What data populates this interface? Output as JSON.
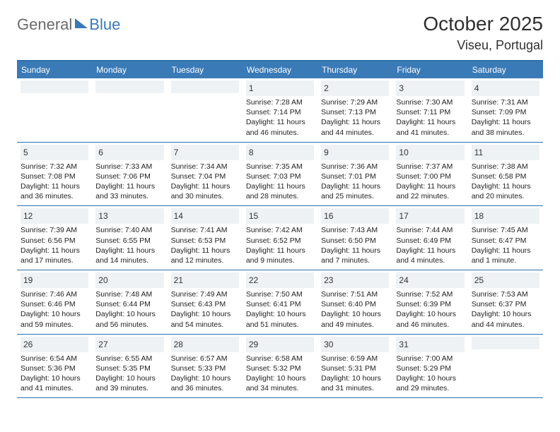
{
  "logo": {
    "general": "General",
    "blue": "Blue"
  },
  "title": "October 2025",
  "location": "Viseu, Portugal",
  "colors": {
    "header_bg": "#3a7ab7",
    "border": "#2f6fa8",
    "daynum_bg": "#eef2f5",
    "text": "#222222"
  },
  "font": {
    "info_size": 10.5,
    "daynum_size": 12,
    "title_size": 28
  },
  "day_headers": [
    "Sunday",
    "Monday",
    "Tuesday",
    "Wednesday",
    "Thursday",
    "Friday",
    "Saturday"
  ],
  "weeks": [
    [
      null,
      null,
      null,
      {
        "d": "1",
        "sr": "7:28 AM",
        "ss": "7:14 PM",
        "dl": "11 hours and 46 minutes."
      },
      {
        "d": "2",
        "sr": "7:29 AM",
        "ss": "7:13 PM",
        "dl": "11 hours and 44 minutes."
      },
      {
        "d": "3",
        "sr": "7:30 AM",
        "ss": "7:11 PM",
        "dl": "11 hours and 41 minutes."
      },
      {
        "d": "4",
        "sr": "7:31 AM",
        "ss": "7:09 PM",
        "dl": "11 hours and 38 minutes."
      }
    ],
    [
      {
        "d": "5",
        "sr": "7:32 AM",
        "ss": "7:08 PM",
        "dl": "11 hours and 36 minutes."
      },
      {
        "d": "6",
        "sr": "7:33 AM",
        "ss": "7:06 PM",
        "dl": "11 hours and 33 minutes."
      },
      {
        "d": "7",
        "sr": "7:34 AM",
        "ss": "7:04 PM",
        "dl": "11 hours and 30 minutes."
      },
      {
        "d": "8",
        "sr": "7:35 AM",
        "ss": "7:03 PM",
        "dl": "11 hours and 28 minutes."
      },
      {
        "d": "9",
        "sr": "7:36 AM",
        "ss": "7:01 PM",
        "dl": "11 hours and 25 minutes."
      },
      {
        "d": "10",
        "sr": "7:37 AM",
        "ss": "7:00 PM",
        "dl": "11 hours and 22 minutes."
      },
      {
        "d": "11",
        "sr": "7:38 AM",
        "ss": "6:58 PM",
        "dl": "11 hours and 20 minutes."
      }
    ],
    [
      {
        "d": "12",
        "sr": "7:39 AM",
        "ss": "6:56 PM",
        "dl": "11 hours and 17 minutes."
      },
      {
        "d": "13",
        "sr": "7:40 AM",
        "ss": "6:55 PM",
        "dl": "11 hours and 14 minutes."
      },
      {
        "d": "14",
        "sr": "7:41 AM",
        "ss": "6:53 PM",
        "dl": "11 hours and 12 minutes."
      },
      {
        "d": "15",
        "sr": "7:42 AM",
        "ss": "6:52 PM",
        "dl": "11 hours and 9 minutes."
      },
      {
        "d": "16",
        "sr": "7:43 AM",
        "ss": "6:50 PM",
        "dl": "11 hours and 7 minutes."
      },
      {
        "d": "17",
        "sr": "7:44 AM",
        "ss": "6:49 PM",
        "dl": "11 hours and 4 minutes."
      },
      {
        "d": "18",
        "sr": "7:45 AM",
        "ss": "6:47 PM",
        "dl": "11 hours and 1 minute."
      }
    ],
    [
      {
        "d": "19",
        "sr": "7:46 AM",
        "ss": "6:46 PM",
        "dl": "10 hours and 59 minutes."
      },
      {
        "d": "20",
        "sr": "7:48 AM",
        "ss": "6:44 PM",
        "dl": "10 hours and 56 minutes."
      },
      {
        "d": "21",
        "sr": "7:49 AM",
        "ss": "6:43 PM",
        "dl": "10 hours and 54 minutes."
      },
      {
        "d": "22",
        "sr": "7:50 AM",
        "ss": "6:41 PM",
        "dl": "10 hours and 51 minutes."
      },
      {
        "d": "23",
        "sr": "7:51 AM",
        "ss": "6:40 PM",
        "dl": "10 hours and 49 minutes."
      },
      {
        "d": "24",
        "sr": "7:52 AM",
        "ss": "6:39 PM",
        "dl": "10 hours and 46 minutes."
      },
      {
        "d": "25",
        "sr": "7:53 AM",
        "ss": "6:37 PM",
        "dl": "10 hours and 44 minutes."
      }
    ],
    [
      {
        "d": "26",
        "sr": "6:54 AM",
        "ss": "5:36 PM",
        "dl": "10 hours and 41 minutes."
      },
      {
        "d": "27",
        "sr": "6:55 AM",
        "ss": "5:35 PM",
        "dl": "10 hours and 39 minutes."
      },
      {
        "d": "28",
        "sr": "6:57 AM",
        "ss": "5:33 PM",
        "dl": "10 hours and 36 minutes."
      },
      {
        "d": "29",
        "sr": "6:58 AM",
        "ss": "5:32 PM",
        "dl": "10 hours and 34 minutes."
      },
      {
        "d": "30",
        "sr": "6:59 AM",
        "ss": "5:31 PM",
        "dl": "10 hours and 31 minutes."
      },
      {
        "d": "31",
        "sr": "7:00 AM",
        "ss": "5:29 PM",
        "dl": "10 hours and 29 minutes."
      },
      null
    ]
  ],
  "labels": {
    "sunrise": "Sunrise:",
    "sunset": "Sunset:",
    "daylight": "Daylight:"
  }
}
